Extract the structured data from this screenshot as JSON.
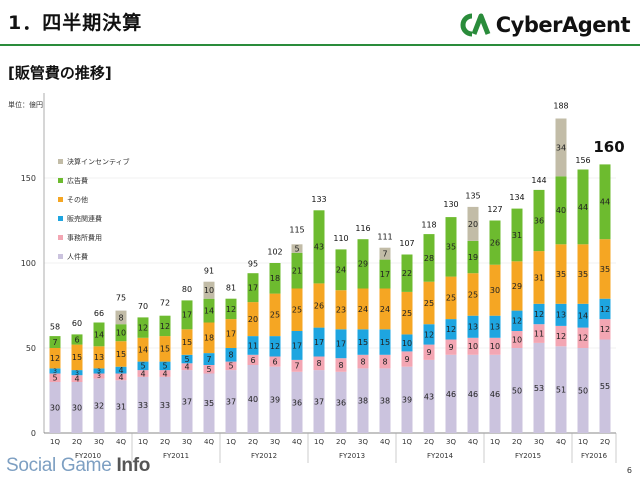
{
  "header": {
    "title": "1．四半期決算",
    "subtitle": "[販管費の推移]"
  },
  "logo": {
    "text": "CyberAgent",
    "color": "#2a8c3b"
  },
  "footer": {
    "brand_main": "Social Game ",
    "brand_bold": "Info",
    "page_number": "6"
  },
  "chart_data": {
    "type": "bar",
    "stacked": true,
    "unit_label": "単位：億円",
    "ylim": [
      0,
      200
    ],
    "yticks": [
      0,
      50,
      100,
      150
    ],
    "categories": [
      "1Q",
      "2Q",
      "3Q",
      "4Q",
      "1Q",
      "2Q",
      "3Q",
      "4Q",
      "1Q",
      "2Q",
      "3Q",
      "4Q",
      "1Q",
      "2Q",
      "3Q",
      "4Q",
      "1Q",
      "2Q",
      "3Q",
      "4Q",
      "1Q",
      "2Q",
      "3Q",
      "4Q",
      "1Q",
      "2Q"
    ],
    "groups": [
      {
        "label": "FY2010",
        "start": 0,
        "end": 3
      },
      {
        "label": "FY2011",
        "start": 4,
        "end": 7
      },
      {
        "label": "FY2012",
        "start": 8,
        "end": 11
      },
      {
        "label": "FY2013",
        "start": 12,
        "end": 15
      },
      {
        "label": "FY2014",
        "start": 16,
        "end": 19
      },
      {
        "label": "FY2015",
        "start": 20,
        "end": 23
      },
      {
        "label": "FY2016",
        "start": 24,
        "end": 25
      }
    ],
    "series": [
      {
        "name": "人件費",
        "color": "#cbc3de",
        "values": [
          30,
          30,
          32,
          31,
          33,
          33,
          37,
          35,
          37,
          40,
          39,
          36,
          37,
          36,
          38,
          38,
          39,
          43,
          46,
          46,
          46,
          50,
          53,
          51,
          50,
          55
        ]
      },
      {
        "name": "事務所費用",
        "color": "#f3a6b3",
        "values": [
          5,
          4,
          3,
          4,
          4,
          4,
          4,
          5,
          5,
          6,
          6,
          7,
          8,
          8,
          8,
          8,
          9,
          9,
          9,
          10,
          10,
          10,
          11,
          12,
          12,
          12
        ]
      },
      {
        "name": "販売関連費",
        "color": "#1ea5e0",
        "values": [
          3,
          3,
          3,
          4,
          5,
          5,
          5,
          7,
          8,
          11,
          12,
          17,
          17,
          17,
          15,
          15,
          10,
          12,
          12,
          13,
          13,
          12,
          12,
          13,
          14,
          12
        ]
      },
      {
        "name": "その他",
        "color": "#f5a623",
        "values": [
          12,
          15,
          13,
          15,
          14,
          15,
          15,
          18,
          17,
          20,
          25,
          25,
          26,
          23,
          24,
          24,
          25,
          25,
          25,
          25,
          30,
          29,
          31,
          35,
          35,
          35
        ]
      },
      {
        "name": "広告費",
        "color": "#6dbb2f",
        "values": [
          7,
          6,
          14,
          10,
          12,
          12,
          17,
          14,
          12,
          17,
          18,
          21,
          43,
          24,
          29,
          17,
          22,
          28,
          35,
          19,
          26,
          31,
          36,
          40,
          44,
          44
        ]
      },
      {
        "name": "決算インセンティブ",
        "color": "#c2bca7",
        "values": [
          null,
          null,
          null,
          8,
          null,
          null,
          null,
          10,
          null,
          null,
          null,
          5,
          null,
          null,
          null,
          7,
          null,
          null,
          null,
          20,
          null,
          null,
          null,
          34,
          null,
          null
        ]
      }
    ],
    "totals": [
      58,
      60,
      66,
      75,
      70,
      72,
      80,
      91,
      81,
      95,
      102,
      115,
      133,
      110,
      116,
      111,
      107,
      118,
      130,
      135,
      127,
      134,
      144,
      188,
      156,
      160
    ],
    "highlight_total_index": 25
  }
}
